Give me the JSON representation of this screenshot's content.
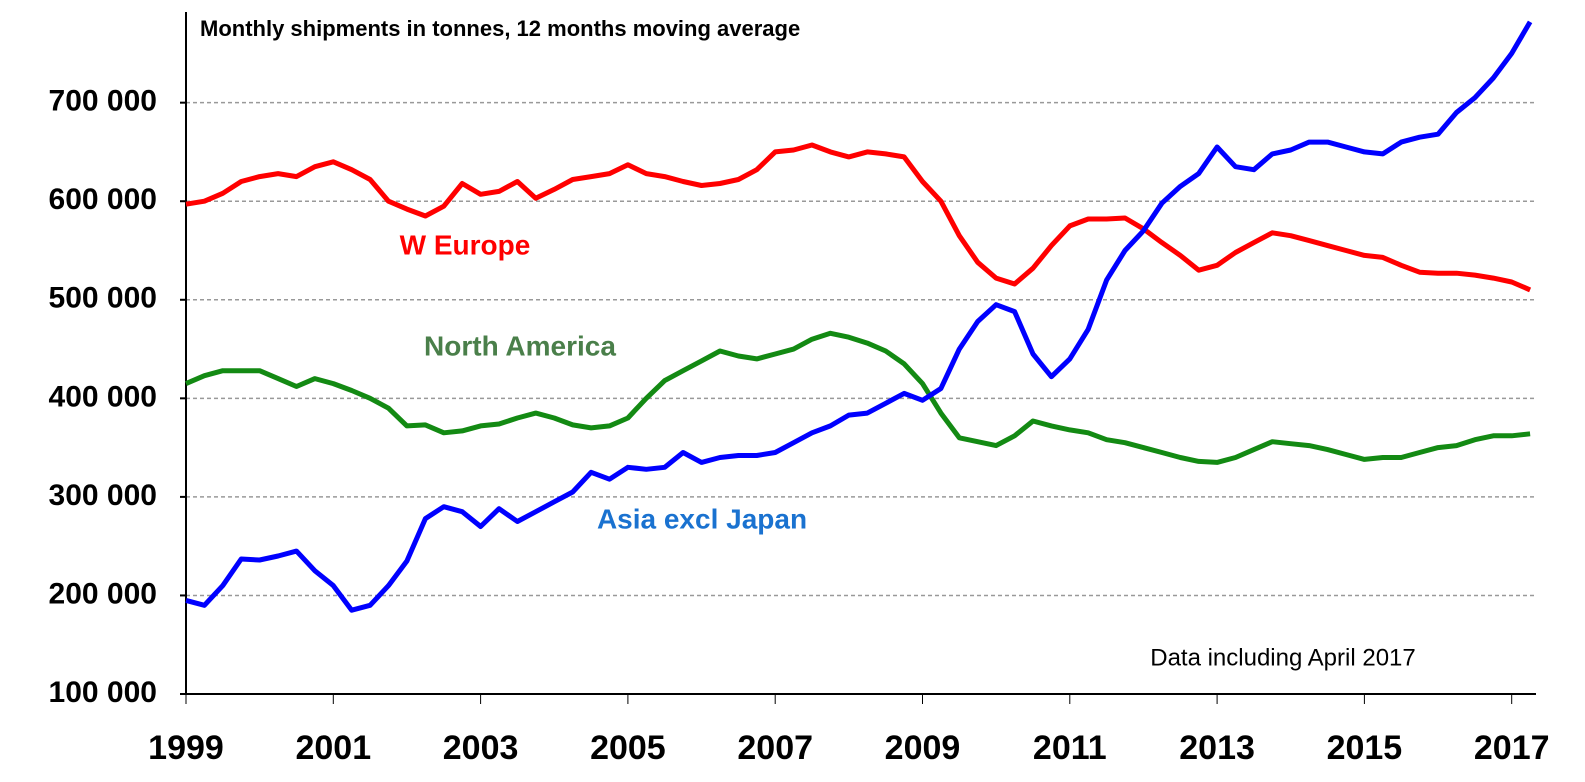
{
  "chart_data": {
    "type": "line",
    "title": "Monthly shipments in tonnes, 12 months moving average",
    "annotations": [
      "Data including April 2017"
    ],
    "x": [
      1999,
      1999.25,
      1999.5,
      1999.75,
      2000,
      2000.25,
      2000.5,
      2000.75,
      2001,
      2001.25,
      2001.5,
      2001.75,
      2002,
      2002.25,
      2002.5,
      2002.75,
      2003,
      2003.25,
      2003.5,
      2003.75,
      2004,
      2004.25,
      2004.5,
      2004.75,
      2005,
      2005.25,
      2005.5,
      2005.75,
      2006,
      2006.25,
      2006.5,
      2006.75,
      2007,
      2007.25,
      2007.5,
      2007.75,
      2008,
      2008.25,
      2008.5,
      2008.75,
      2009,
      2009.25,
      2009.5,
      2009.75,
      2010,
      2010.25,
      2010.5,
      2010.75,
      2011,
      2011.25,
      2011.5,
      2011.75,
      2012,
      2012.25,
      2012.5,
      2012.75,
      2013,
      2013.25,
      2013.5,
      2013.75,
      2014,
      2014.25,
      2014.5,
      2014.75,
      2015,
      2015.25,
      2015.5,
      2015.75,
      2016,
      2016.25,
      2016.5,
      2016.75,
      2017,
      2017.25
    ],
    "series": [
      {
        "name": "W Europe",
        "color": "#ff0000",
        "label_color": "#ff0000",
        "values": [
          597000,
          600000,
          608000,
          620000,
          625000,
          628000,
          625000,
          635000,
          640000,
          632000,
          622000,
          600000,
          592000,
          585000,
          595000,
          618000,
          607000,
          610000,
          620000,
          603000,
          612000,
          622000,
          625000,
          628000,
          637000,
          628000,
          625000,
          620000,
          616000,
          618000,
          622000,
          632000,
          650000,
          652000,
          657000,
          650000,
          645000,
          650000,
          648000,
          645000,
          620000,
          600000,
          565000,
          538000,
          522000,
          516000,
          532000,
          555000,
          575000,
          582000,
          582000,
          583000,
          572000,
          558000,
          545000,
          530000,
          535000,
          548000,
          558000,
          568000,
          565000,
          560000,
          555000,
          550000,
          545000,
          543000,
          535000,
          528000,
          527000,
          527000,
          525000,
          522000,
          518000,
          510000
        ]
      },
      {
        "name": "North America",
        "color": "#138a13",
        "label_color": "#4a7f4a",
        "values": [
          415000,
          423000,
          428000,
          428000,
          428000,
          420000,
          412000,
          420000,
          415000,
          408000,
          400000,
          390000,
          372000,
          373000,
          365000,
          367000,
          372000,
          374000,
          380000,
          385000,
          380000,
          373000,
          370000,
          372000,
          380000,
          400000,
          418000,
          428000,
          438000,
          448000,
          443000,
          440000,
          445000,
          450000,
          460000,
          466000,
          462000,
          456000,
          448000,
          435000,
          415000,
          385000,
          360000,
          356000,
          352000,
          362000,
          377000,
          372000,
          368000,
          365000,
          358000,
          355000,
          350000,
          345000,
          340000,
          336000,
          335000,
          340000,
          348000,
          356000,
          354000,
          352000,
          348000,
          343000,
          338000,
          340000,
          340000,
          345000,
          350000,
          352000,
          358000,
          362000,
          362000,
          364000
        ]
      },
      {
        "name": "Asia excl Japan",
        "color": "#0000ff",
        "label_color": "#1a72d0",
        "values": [
          195000,
          190000,
          210000,
          237000,
          236000,
          240000,
          245000,
          225000,
          210000,
          185000,
          190000,
          210000,
          235000,
          278000,
          290000,
          285000,
          270000,
          288000,
          275000,
          285000,
          295000,
          305000,
          325000,
          318000,
          330000,
          328000,
          330000,
          345000,
          335000,
          340000,
          342000,
          342000,
          345000,
          355000,
          365000,
          372000,
          383000,
          385000,
          395000,
          405000,
          398000,
          410000,
          450000,
          478000,
          495000,
          488000,
          445000,
          422000,
          440000,
          470000,
          520000,
          550000,
          570000,
          598000,
          615000,
          628000,
          655000,
          635000,
          632000,
          648000,
          652000,
          660000,
          660000,
          655000,
          650000,
          648000,
          660000,
          665000,
          668000,
          690000,
          705000,
          725000,
          750000,
          782000
        ]
      }
    ],
    "xlim": [
      1999,
      2017.33
    ],
    "xticks": [
      1999,
      2001,
      2003,
      2005,
      2007,
      2009,
      2011,
      2013,
      2015,
      2017
    ],
    "ylim": [
      100000,
      792000
    ],
    "yticks": [
      {
        "value": 100000,
        "label": "100 000"
      },
      {
        "value": 200000,
        "label": "200 000"
      },
      {
        "value": 300000,
        "label": "300 000"
      },
      {
        "value": 400000,
        "label": "400 000"
      },
      {
        "value": 500000,
        "label": "500 000"
      },
      {
        "value": 600000,
        "label": "600 000"
      },
      {
        "value": 700000,
        "label": "700 000"
      }
    ],
    "grid": true
  }
}
